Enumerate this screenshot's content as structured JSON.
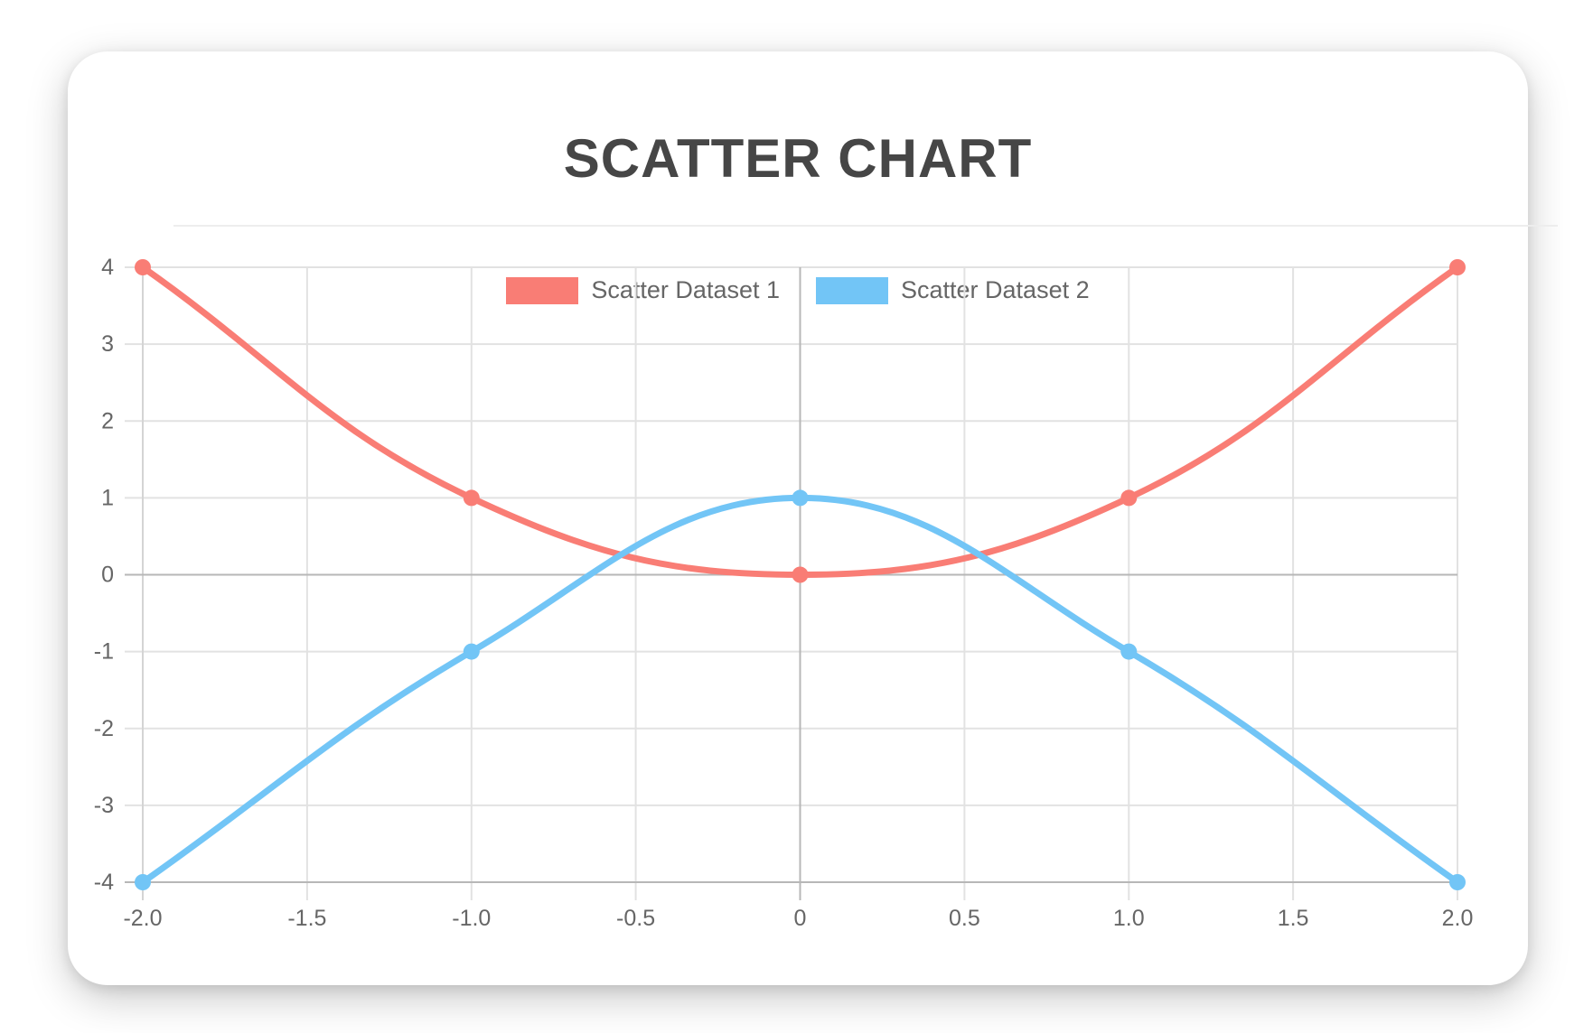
{
  "card": {
    "title": "SCATTER CHART"
  },
  "legend": {
    "position": "top",
    "items": [
      {
        "label": "Scatter Dataset 1",
        "color": "#f97d75"
      },
      {
        "label": "Scatter Dataset 2",
        "color": "#72c5f6"
      }
    ]
  },
  "chart_data": {
    "type": "scatter",
    "title": "SCATTER CHART",
    "xlabel": "",
    "ylabel": "",
    "xlim": [
      -2,
      2
    ],
    "ylim": [
      -4,
      4
    ],
    "grid": true,
    "legend_position": "top",
    "line_tension": 0.4,
    "line_width": 7,
    "point_radius": 9,
    "x_tick_values": [
      -2,
      -1.5,
      -1,
      -0.5,
      0,
      0.5,
      1,
      1.5,
      2
    ],
    "x_tick_labels": [
      "-2.0",
      "-1.5",
      "-1.0",
      "-0.5",
      "0",
      "0.5",
      "1.0",
      "1.5",
      "2.0"
    ],
    "y_tick_values": [
      4,
      3,
      2,
      1,
      0,
      -1,
      -2,
      -3,
      -4
    ],
    "y_tick_labels": [
      "4",
      "3",
      "2",
      "1",
      "0",
      "-1",
      "-2",
      "-3",
      "-4"
    ],
    "series": [
      {
        "name": "Scatter Dataset 1",
        "color": "#f97d75",
        "points": [
          [
            -2,
            4
          ],
          [
            -1,
            1
          ],
          [
            0,
            0
          ],
          [
            1,
            1
          ],
          [
            2,
            4
          ]
        ]
      },
      {
        "name": "Scatter Dataset 2",
        "color": "#72c5f6",
        "points": [
          [
            -2,
            -4
          ],
          [
            -1,
            -1
          ],
          [
            0,
            1
          ],
          [
            1,
            -1
          ],
          [
            2,
            -4
          ]
        ]
      }
    ]
  },
  "colors": {
    "grid": "#e2e2e2",
    "zero_line": "#b7b7b7",
    "axis_border_bottom": "#b7b7b7",
    "axis_border_left": "#d4d4d4",
    "tick_text": "#666666",
    "legend_text": "#666666",
    "title_text": "#464646",
    "divider": "#ededed",
    "card_bg": "#ffffff",
    "page_bg": "#ffffff"
  }
}
